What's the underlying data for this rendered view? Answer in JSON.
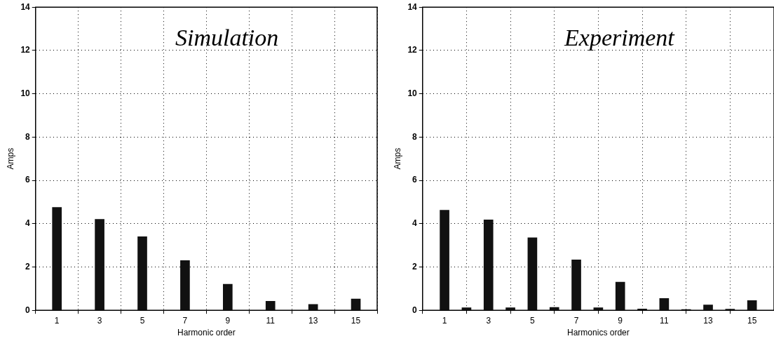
{
  "chart_data": [
    {
      "type": "bar",
      "title": "Simulation",
      "xlabel": "Harmonic order",
      "ylabel": "Amps",
      "x": [
        1,
        3,
        5,
        7,
        9,
        11,
        13,
        15
      ],
      "values": [
        4.75,
        4.2,
        3.4,
        2.3,
        1.2,
        0.42,
        0.27,
        0.52
      ],
      "color": "#111111",
      "xlim": [
        0,
        16
      ],
      "xticks": [
        1,
        3,
        5,
        7,
        9,
        11,
        13,
        15
      ],
      "ylim": [
        0,
        14
      ],
      "yticks": [
        0,
        2,
        4,
        6,
        8,
        10,
        12,
        14
      ],
      "grid": true
    },
    {
      "type": "bar",
      "title": "Experiment",
      "xlabel": "Harmonics order",
      "ylabel": "Amps",
      "x": [
        1,
        2,
        3,
        4,
        5,
        6,
        7,
        8,
        9,
        10,
        11,
        12,
        13,
        14,
        15
      ],
      "values": [
        4.62,
        0.12,
        4.18,
        0.12,
        3.35,
        0.13,
        2.33,
        0.12,
        1.3,
        0.06,
        0.55,
        0.04,
        0.25,
        0.05,
        0.45
      ],
      "color": "#111111",
      "xlim": [
        0,
        16
      ],
      "xticks": [
        1,
        3,
        5,
        7,
        9,
        11,
        13,
        15
      ],
      "ylim": [
        0,
        14
      ],
      "yticks": [
        0,
        2,
        4,
        6,
        8,
        10,
        12,
        14
      ],
      "grid": true
    }
  ]
}
